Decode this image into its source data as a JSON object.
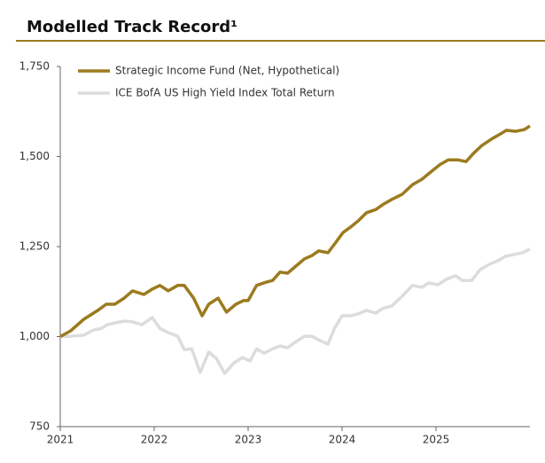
{
  "chart_data": {
    "type": "line",
    "title": "Modelled Track Record¹",
    "xlim": [
      2021,
      2026
    ],
    "xticks": [
      2021,
      2022,
      2023,
      2024,
      2025
    ],
    "ylim": [
      750,
      1750
    ],
    "yticks": [
      750,
      {
        "value": 1000,
        "label": "1,000"
      },
      {
        "value": 1250,
        "label": "1,250"
      },
      {
        "value": 1500,
        "label": "1,500"
      },
      {
        "value": 1750,
        "label": "1,750"
      }
    ],
    "legend": "top-left",
    "grid": false,
    "series": [
      {
        "name": "Strategic Income Fund (Net, Hypothetical)",
        "color": "#9b7b1f",
        "x": [
          2021.0,
          2021.11,
          2021.25,
          2021.4,
          2021.49,
          2021.58,
          2021.68,
          2021.77,
          2021.89,
          2021.98,
          2022.06,
          2022.15,
          2022.25,
          2022.32,
          2022.42,
          2022.51,
          2022.58,
          2022.68,
          2022.77,
          2022.87,
          2022.95,
          2023.0,
          2023.09,
          2023.19,
          2023.26,
          2023.34,
          2023.42,
          2023.51,
          2023.6,
          2023.68,
          2023.75,
          2023.85,
          2023.92,
          2024.01,
          2024.09,
          2024.17,
          2024.26,
          2024.36,
          2024.43,
          2024.53,
          2024.64,
          2024.75,
          2024.85,
          2024.92,
          2025.04,
          2025.13,
          2025.23,
          2025.32,
          2025.4,
          2025.49,
          2025.6,
          2025.7,
          2025.75,
          2025.85,
          2025.94,
          2026.0
        ],
        "values": [
          1000,
          1016,
          1048,
          1073,
          1090,
          1090,
          1107,
          1127,
          1117,
          1132,
          1142,
          1127,
          1142,
          1142,
          1107,
          1058,
          1090,
          1107,
          1068,
          1090,
          1100,
          1100,
          1142,
          1151,
          1156,
          1179,
          1176,
          1196,
          1216,
          1225,
          1238,
          1233,
          1257,
          1289,
          1304,
          1321,
          1344,
          1353,
          1366,
          1381,
          1395,
          1422,
          1437,
          1452,
          1477,
          1491,
          1491,
          1486,
          1509,
          1531,
          1550,
          1565,
          1573,
          1570,
          1575,
          1585
        ]
      },
      {
        "name": "ICE BofA US High Yield Index Total Return",
        "color": "#dcdcdc",
        "x": [
          2021.0,
          2021.11,
          2021.25,
          2021.35,
          2021.44,
          2021.5,
          2021.58,
          2021.68,
          2021.77,
          2021.87,
          2021.98,
          2022.06,
          2022.15,
          2022.25,
          2022.32,
          2022.4,
          2022.49,
          2022.58,
          2022.66,
          2022.75,
          2022.85,
          2022.94,
          2023.02,
          2023.09,
          2023.17,
          2023.26,
          2023.34,
          2023.42,
          2023.51,
          2023.6,
          2023.68,
          2023.75,
          2023.85,
          2023.92,
          2024.0,
          2024.09,
          2024.17,
          2024.26,
          2024.36,
          2024.43,
          2024.53,
          2024.64,
          2024.75,
          2024.85,
          2024.92,
          2025.02,
          2025.11,
          2025.21,
          2025.28,
          2025.38,
          2025.47,
          2025.57,
          2025.66,
          2025.74,
          2025.83,
          2025.92,
          2026.0
        ],
        "values": [
          1000,
          1001,
          1004,
          1018,
          1023,
          1033,
          1038,
          1043,
          1041,
          1033,
          1053,
          1023,
          1011,
          1001,
          964,
          966,
          900,
          957,
          940,
          898,
          927,
          942,
          932,
          966,
          954,
          966,
          974,
          969,
          986,
          1001,
          1001,
          991,
          979,
          1023,
          1058,
          1058,
          1063,
          1073,
          1065,
          1078,
          1085,
          1112,
          1142,
          1137,
          1149,
          1144,
          1159,
          1169,
          1156,
          1156,
          1186,
          1201,
          1211,
          1223,
          1228,
          1233,
          1243
        ]
      }
    ]
  }
}
